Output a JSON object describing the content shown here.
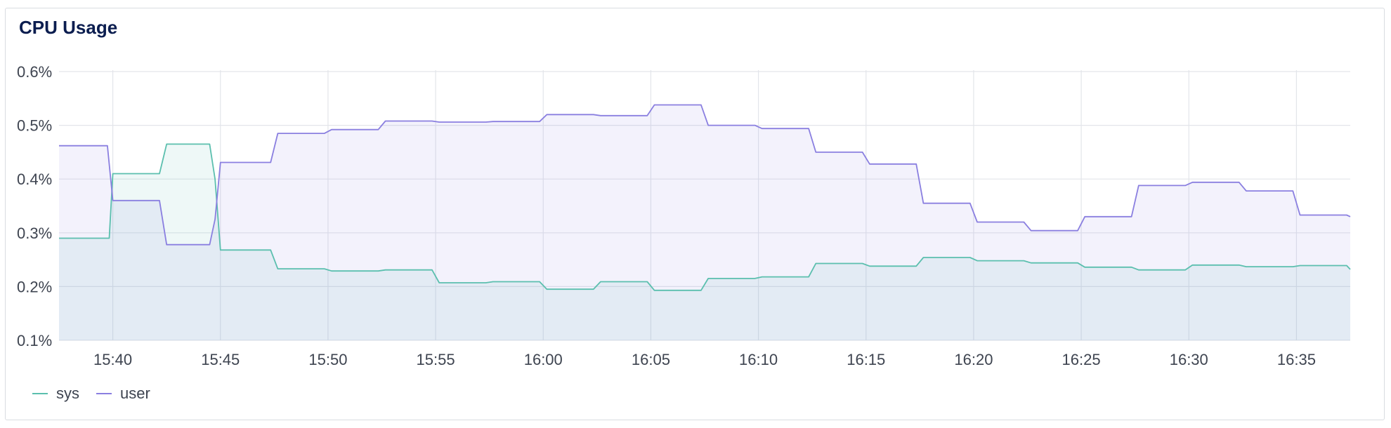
{
  "panel": {
    "title": "CPU Usage"
  },
  "colors": {
    "sys": "#5bbfae",
    "user": "#8a7fe0",
    "grid": "#e3e5ea"
  },
  "chart_data": {
    "type": "area",
    "title": "CPU Usage",
    "ylim": [
      0.1,
      0.6
    ],
    "y_ticks": [
      {
        "value": 0.1,
        "label": "0.1%"
      },
      {
        "value": 0.2,
        "label": "0.2%"
      },
      {
        "value": 0.3,
        "label": "0.3%"
      },
      {
        "value": 0.4,
        "label": "0.4%"
      },
      {
        "value": 0.5,
        "label": "0.5%"
      },
      {
        "value": 0.6,
        "label": "0.6%"
      }
    ],
    "x_range": [
      "15:37:30",
      "16:37:30"
    ],
    "x_ticks": [
      "15:40",
      "15:45",
      "15:50",
      "15:55",
      "16:00",
      "16:05",
      "16:10",
      "16:15",
      "16:20",
      "16:25",
      "16:30",
      "16:35"
    ],
    "grid": true,
    "legend_position": "bottom-left",
    "series": [
      {
        "name": "sys",
        "points": [
          [
            "15:37:30",
            0.29
          ],
          [
            "15:39:50",
            0.29
          ],
          [
            "15:40:00",
            0.41
          ],
          [
            "15:42:10",
            0.41
          ],
          [
            "15:42:30",
            0.465
          ],
          [
            "15:44:30",
            0.465
          ],
          [
            "15:44:45",
            0.4
          ],
          [
            "15:45:00",
            0.268
          ],
          [
            "15:47:20",
            0.268
          ],
          [
            "15:47:40",
            0.233
          ],
          [
            "15:49:50",
            0.233
          ],
          [
            "15:50:10",
            0.229
          ],
          [
            "15:52:20",
            0.229
          ],
          [
            "15:52:40",
            0.231
          ],
          [
            "15:54:50",
            0.231
          ],
          [
            "15:55:10",
            0.207
          ],
          [
            "15:57:20",
            0.207
          ],
          [
            "15:57:40",
            0.209
          ],
          [
            "15:59:50",
            0.209
          ],
          [
            "16:00:10",
            0.195
          ],
          [
            "16:02:20",
            0.195
          ],
          [
            "16:02:40",
            0.209
          ],
          [
            "16:04:50",
            0.209
          ],
          [
            "16:05:10",
            0.193
          ],
          [
            "16:07:20",
            0.193
          ],
          [
            "16:07:40",
            0.215
          ],
          [
            "16:09:50",
            0.215
          ],
          [
            "16:10:10",
            0.218
          ],
          [
            "16:12:20",
            0.218
          ],
          [
            "16:12:40",
            0.243
          ],
          [
            "16:14:50",
            0.243
          ],
          [
            "16:15:10",
            0.238
          ],
          [
            "16:17:20",
            0.238
          ],
          [
            "16:17:40",
            0.254
          ],
          [
            "16:19:50",
            0.254
          ],
          [
            "16:20:10",
            0.248
          ],
          [
            "16:22:20",
            0.248
          ],
          [
            "16:22:40",
            0.244
          ],
          [
            "16:24:50",
            0.244
          ],
          [
            "16:25:10",
            0.236
          ],
          [
            "16:27:20",
            0.236
          ],
          [
            "16:27:40",
            0.231
          ],
          [
            "16:29:50",
            0.231
          ],
          [
            "16:30:10",
            0.24
          ],
          [
            "16:32:20",
            0.24
          ],
          [
            "16:32:40",
            0.237
          ],
          [
            "16:34:50",
            0.237
          ],
          [
            "16:35:10",
            0.239
          ],
          [
            "16:37:20",
            0.239
          ],
          [
            "16:37:30",
            0.232
          ]
        ]
      },
      {
        "name": "user",
        "points": [
          [
            "15:37:30",
            0.462
          ],
          [
            "15:39:45",
            0.462
          ],
          [
            "15:40:00",
            0.36
          ],
          [
            "15:42:10",
            0.36
          ],
          [
            "15:42:30",
            0.278
          ],
          [
            "15:44:30",
            0.278
          ],
          [
            "15:44:45",
            0.325
          ],
          [
            "15:45:00",
            0.431
          ],
          [
            "15:47:20",
            0.431
          ],
          [
            "15:47:40",
            0.485
          ],
          [
            "15:49:50",
            0.485
          ],
          [
            "15:50:10",
            0.492
          ],
          [
            "15:52:20",
            0.492
          ],
          [
            "15:52:40",
            0.508
          ],
          [
            "15:54:50",
            0.508
          ],
          [
            "15:55:10",
            0.506
          ],
          [
            "15:57:20",
            0.506
          ],
          [
            "15:57:40",
            0.507
          ],
          [
            "15:59:50",
            0.507
          ],
          [
            "16:00:10",
            0.52
          ],
          [
            "16:02:20",
            0.52
          ],
          [
            "16:02:40",
            0.518
          ],
          [
            "16:04:50",
            0.518
          ],
          [
            "16:05:10",
            0.538
          ],
          [
            "16:07:20",
            0.538
          ],
          [
            "16:07:40",
            0.5
          ],
          [
            "16:09:50",
            0.5
          ],
          [
            "16:10:10",
            0.494
          ],
          [
            "16:12:20",
            0.494
          ],
          [
            "16:12:40",
            0.45
          ],
          [
            "16:14:50",
            0.45
          ],
          [
            "16:15:10",
            0.428
          ],
          [
            "16:17:20",
            0.428
          ],
          [
            "16:17:40",
            0.355
          ],
          [
            "16:19:50",
            0.355
          ],
          [
            "16:20:10",
            0.32
          ],
          [
            "16:22:20",
            0.32
          ],
          [
            "16:22:40",
            0.304
          ],
          [
            "16:24:50",
            0.304
          ],
          [
            "16:25:10",
            0.33
          ],
          [
            "16:27:20",
            0.33
          ],
          [
            "16:27:40",
            0.388
          ],
          [
            "16:29:50",
            0.388
          ],
          [
            "16:30:10",
            0.394
          ],
          [
            "16:32:20",
            0.394
          ],
          [
            "16:32:40",
            0.378
          ],
          [
            "16:34:50",
            0.378
          ],
          [
            "16:35:10",
            0.333
          ],
          [
            "16:37:20",
            0.333
          ],
          [
            "16:37:30",
            0.33
          ]
        ]
      }
    ]
  }
}
